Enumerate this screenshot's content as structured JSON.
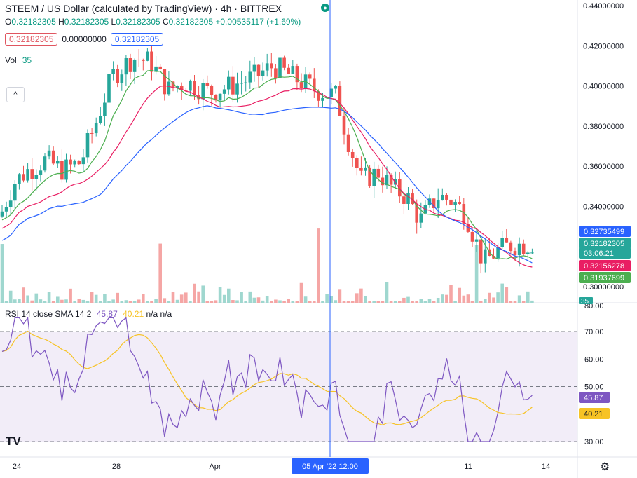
{
  "header": {
    "title": "STEEM / US Dollar (calculated by TradingView) · 4h · BITTREX",
    "ohlc": {
      "o_label": "O",
      "o": "0.32182305",
      "h_label": "H",
      "h": "0.32182305",
      "l_label": "L",
      "l": "0.32182305",
      "c_label": "C",
      "c": "0.32182305",
      "change": "+0.00535117 (+1.69%)"
    },
    "sell_price": "0.32182305",
    "spread": "0.00000000",
    "buy_price": "0.32182305",
    "volume_label": "Vol",
    "volume_value": "35"
  },
  "rsi_legend": {
    "label": "RSI 14 close SMA 14 2",
    "rsi_value": "45.87",
    "sma_value": "40.21",
    "na1": "n/a",
    "na2": "n/a"
  },
  "colors": {
    "up": "#26a69a",
    "down": "#ef5350",
    "vol_up": "#9fd7cf",
    "vol_down": "#f5a6a5",
    "ma_fast": "#4caf50",
    "ma_mid": "#e91e63",
    "ma_slow": "#2962ff",
    "rsi": "#7e57c2",
    "rsi_sma": "#f7c325",
    "rsi_band": "#ede7f6",
    "crosshair": "#2962ff"
  },
  "chart_data": [
    {
      "type": "candlestick",
      "series": [
        {
          "name": "STEEM / US Dollar",
          "close_last": 0.32182305
        },
        {
          "name": "MA",
          "last": 0.32735499
        },
        {
          "name": "MA",
          "last": 0.32156278
        },
        {
          "name": "MA",
          "last": 0.31937699
        }
      ],
      "price_axis_ticks": [
        "0.44000000",
        "0.42000000",
        "0.40000000",
        "0.38000000",
        "0.36000000",
        "0.34000000",
        "0.32000000",
        "0.30000000"
      ],
      "ylim": [
        0.2965,
        0.4405
      ],
      "price_labels": [
        {
          "value": "0.32735499",
          "color": "#2962ff"
        },
        {
          "value": "0.32182305",
          "color": "#26a69a"
        },
        {
          "value": "03:06:21",
          "color": "#26a69a"
        },
        {
          "value": "0.32156278",
          "color": "#e91e63"
        },
        {
          "value": "0.31937699",
          "color": "#4caf50"
        }
      ],
      "volume_label": "35",
      "time_axis_ticks": [
        "24",
        "28",
        "Apr",
        "11",
        "14"
      ],
      "crosshair_time": "05 Apr '22  12:00"
    },
    {
      "type": "line",
      "name": "RSI 14",
      "axis_ticks": [
        "80.00",
        "70.00",
        "60.00",
        "50.00",
        "30.00"
      ],
      "ylim": [
        28,
        80
      ],
      "bands": [
        70,
        50,
        30
      ],
      "rsi_last": "45.87",
      "sma_last": "40.21"
    }
  ]
}
